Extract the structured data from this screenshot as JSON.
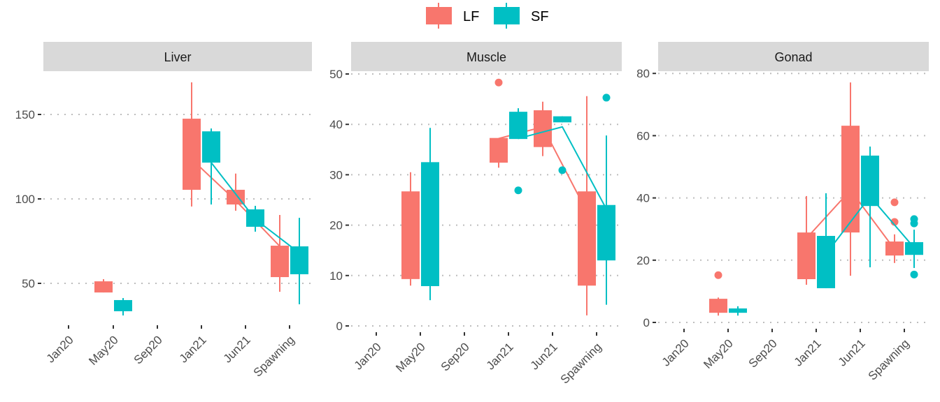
{
  "chart_data": {
    "type": "box",
    "legend": {
      "position": "top",
      "entries": [
        {
          "name": "LF",
          "color": "#F8766D"
        },
        {
          "name": "SF",
          "color": "#00BFC4"
        }
      ]
    },
    "categories": [
      "Jan20",
      "May20",
      "Sep20",
      "Jan21",
      "Jun21",
      "Spawning"
    ],
    "grid": "horizontal dotted major",
    "panels": [
      {
        "title": "Liver",
        "ylim": [
          27.7,
          175
        ],
        "yticks": [
          50,
          100,
          150
        ],
        "series": [
          {
            "name": "LF",
            "boxes": {
              "May20": {
                "lower_whisker": 44.6,
                "q1": 44.6,
                "q3": 51.2,
                "upper_whisker": 52.5,
                "outliers": []
              },
              "Jan21": {
                "lower_whisker": 95.5,
                "q1": 105.4,
                "q3": 147.5,
                "upper_whisker": 169,
                "outliers": []
              },
              "Jun21": {
                "lower_whisker": 93,
                "q1": 96.7,
                "q3": 105.4,
                "upper_whisker": 115,
                "outliers": []
              },
              "Spawning": {
                "lower_whisker": 45,
                "q1": 53.7,
                "q3": 72.3,
                "upper_whisker": 90.5,
                "outliers": []
              }
            },
            "line": {
              "Jan21": 123.5,
              "Jun21": 99,
              "Spawning": 72
            }
          },
          {
            "name": "SF",
            "boxes": {
              "May20": {
                "lower_whisker": 31,
                "q1": 33.5,
                "q3": 40.1,
                "upper_whisker": 41.3,
                "outliers": []
              },
              "Jan21": {
                "lower_whisker": 96.7,
                "q1": 121.5,
                "q3": 140,
                "upper_whisker": 141.7,
                "outliers": []
              },
              "Jun21": {
                "lower_whisker": 80.6,
                "q1": 83.5,
                "q3": 93.8,
                "upper_whisker": 95.9,
                "outliers": []
              },
              "Spawning": {
                "lower_whisker": 37.6,
                "q1": 55.4,
                "q3": 71.9,
                "upper_whisker": 88.8,
                "outliers": []
              }
            },
            "line": {
              "Jan21": 121.5,
              "Jun21": 88,
              "Spawning": 68
            }
          }
        ]
      },
      {
        "title": "Muscle",
        "ylim": [
          -0.3,
          50.5
        ],
        "yticks": [
          0,
          10,
          20,
          30,
          40,
          50
        ],
        "series": [
          {
            "name": "LF",
            "boxes": {
              "May20": {
                "lower_whisker": 8,
                "q1": 9.3,
                "q3": 26.7,
                "upper_whisker": 30.5,
                "outliers": []
              },
              "Jan21": {
                "lower_whisker": 31.4,
                "q1": 32.4,
                "q3": 37.3,
                "upper_whisker": 37.3,
                "outliers": [
                  48.3
                ]
              },
              "Jun21": {
                "lower_whisker": 33.7,
                "q1": 35.5,
                "q3": 42.8,
                "upper_whisker": 44.5,
                "outliers": []
              },
              "Spawning": {
                "lower_whisker": 2.1,
                "q1": 8,
                "q3": 26.7,
                "upper_whisker": 45.6,
                "outliers": []
              }
            },
            "line": {
              "Jan21": 37.2,
              "Jun21": 39.5,
              "Spawning": 22.7
            }
          },
          {
            "name": "SF",
            "boxes": {
              "May20": {
                "lower_whisker": 5.1,
                "q1": 7.9,
                "q3": 32.5,
                "upper_whisker": 39.3,
                "outliers": []
              },
              "Jan21": {
                "lower_whisker": 37.1,
                "q1": 37.1,
                "q3": 42.5,
                "upper_whisker": 43.2,
                "outliers": [
                  26.9
                ]
              },
              "Jun21": {
                "lower_whisker": 40.4,
                "q1": 40.4,
                "q3": 41.6,
                "upper_whisker": 41.6,
                "outliers": [
                  30.9
                ]
              },
              "Spawning": {
                "lower_whisker": 4.2,
                "q1": 13,
                "q3": 24,
                "upper_whisker": 37.8,
                "outliers": [
                  45.3
                ]
              }
            },
            "line": {
              "Jan21": 37.2,
              "Jun21": 39.5,
              "Spawning": 23.2
            }
          }
        ]
      },
      {
        "title": "Gonad",
        "ylim": [
          -0.5,
          80.5
        ],
        "yticks": [
          0,
          20,
          40,
          60,
          80
        ],
        "series": [
          {
            "name": "LF",
            "boxes": {
              "May20": {
                "lower_whisker": 2.2,
                "q1": 3.1,
                "q3": 7.6,
                "upper_whisker": 8,
                "outliers": [
                  15.2
                ]
              },
              "Jan21": {
                "lower_whisker": 12.1,
                "q1": 13.9,
                "q3": 28.9,
                "upper_whisker": 40.6,
                "outliers": []
              },
              "Jun21": {
                "lower_whisker": 15,
                "q1": 28.9,
                "q3": 63.2,
                "upper_whisker": 77.1,
                "outliers": []
              },
              "Spawning": {
                "lower_whisker": 19.1,
                "q1": 21.5,
                "q3": 26,
                "upper_whisker": 28.3,
                "outliers": [
                  38.6,
                  32.3
                ]
              }
            },
            "line": {
              "Jan21": 27,
              "Jun21": 42.5,
              "Spawning": 23.5
            }
          },
          {
            "name": "SF",
            "boxes": {
              "May20": {
                "lower_whisker": 2.2,
                "q1": 3.1,
                "q3": 4.5,
                "upper_whisker": 5.2,
                "outliers": []
              },
              "Jan21": {
                "lower_whisker": 11,
                "q1": 11,
                "q3": 27.8,
                "upper_whisker": 41.5,
                "outliers": []
              },
              "Jun21": {
                "lower_whisker": 17.7,
                "q1": 37.4,
                "q3": 53.6,
                "upper_whisker": 56.5,
                "outliers": []
              },
              "Spawning": {
                "lower_whisker": 17.5,
                "q1": 21.7,
                "q3": 25.8,
                "upper_whisker": 29.8,
                "outliers": [
                  33.2,
                  31.8,
                  15.4
                ]
              }
            },
            "line": {
              "Jan21": 22,
              "Jun21": 40.5,
              "Spawning": 24
            }
          }
        ]
      }
    ]
  }
}
